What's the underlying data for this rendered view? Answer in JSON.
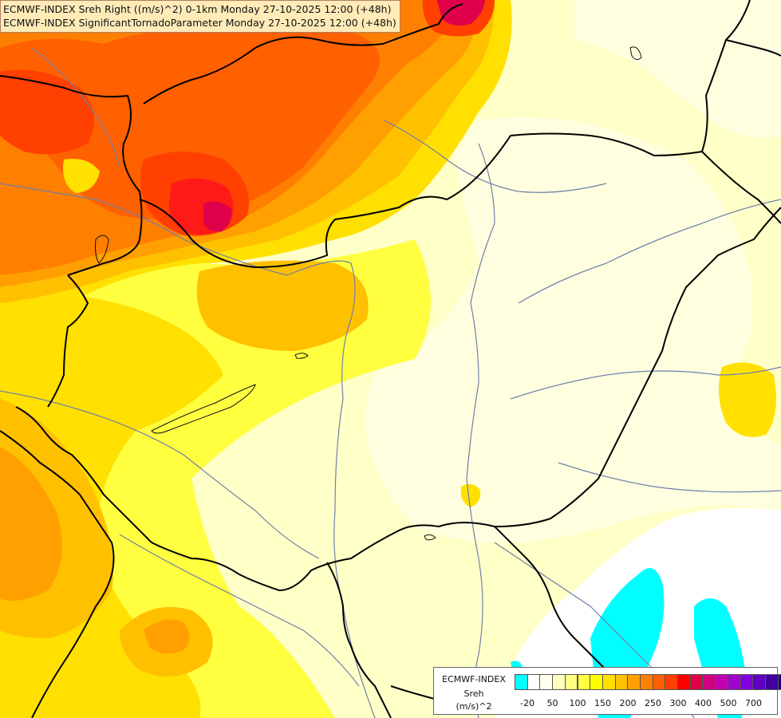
{
  "title_lines": [
    "ECMWF-INDEX Sreh Right ((m/s)^2) 0-1km Monday 27-10-2025 12:00 (+48h)",
    "ECMWF-INDEX SignificantTornadoParameter Monday 27-10-2025 12:00 (+48h)"
  ],
  "legend": {
    "source": "ECMWF-INDEX",
    "parameter": "Sreh",
    "unit": "(m/s)^2",
    "colors": [
      "#00ffff",
      "#ffffff",
      "#fffff0",
      "#ffffc0",
      "#ffff80",
      "#ffff40",
      "#ffff00",
      "#ffe000",
      "#ffc000",
      "#ffa000",
      "#ff8000",
      "#ff6000",
      "#ff4000",
      "#ff0000",
      "#e0004a",
      "#d00080",
      "#c000b0",
      "#a000d0",
      "#8000e0",
      "#6000c0",
      "#4000a0",
      "#200080",
      "#000080"
    ],
    "ticks": [
      "-20",
      "50",
      "100",
      "150",
      "200",
      "250",
      "300",
      "400",
      "500",
      "700"
    ]
  },
  "field_colors": {
    "base": "#ffffc8",
    "pale": "#ffffe0",
    "light_yellow": "#ffff9a",
    "yellow": "#ffff40",
    "gold": "#ffe000",
    "amber": "#ffc000",
    "orange_light": "#ffa000",
    "orange": "#ff8000",
    "orange_red": "#ff6000",
    "red_orange": "#ff4000",
    "red": "#ff1a1a",
    "crimson": "#e0004a",
    "white": "#ffffff",
    "cyan": "#00ffff",
    "border": "#000000",
    "river": "#7080a8"
  }
}
